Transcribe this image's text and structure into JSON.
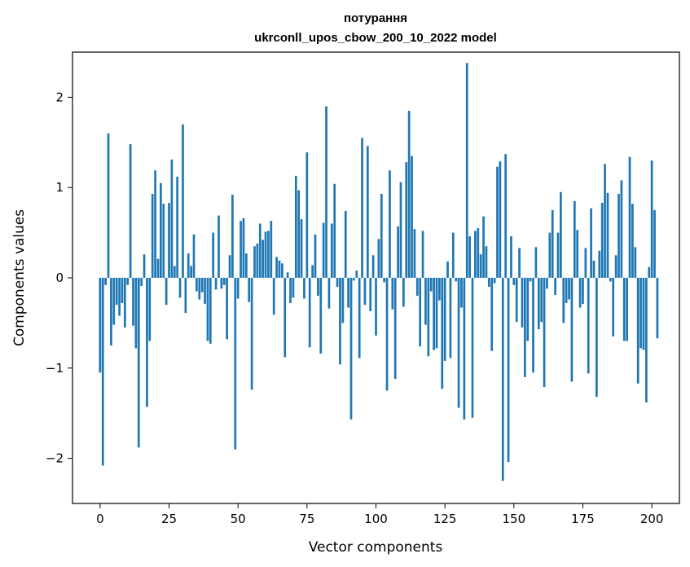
{
  "chart_data": {
    "type": "bar",
    "title_line1": "потурання",
    "title_line2": "ukrconll_upos_cbow_200_10_2022 model",
    "xlabel": "Vector components",
    "ylabel": "Components values",
    "xlim": [
      -10,
      210
    ],
    "ylim": [
      -2.5,
      2.5
    ],
    "xticks": [
      0,
      25,
      50,
      75,
      100,
      125,
      150,
      175,
      200
    ],
    "yticks": [
      -2,
      -1,
      0,
      1,
      2
    ],
    "ytick_labels": [
      "−2",
      "−1",
      "0",
      "1",
      "2"
    ],
    "bar_color": "#1f77b4",
    "grid": false,
    "values": [
      -1.05,
      -2.08,
      -0.08,
      1.6,
      -0.75,
      -0.52,
      -0.3,
      -0.42,
      -0.28,
      -0.55,
      -0.08,
      1.48,
      -0.53,
      -0.78,
      -1.88,
      -0.09,
      0.26,
      -1.43,
      -0.7,
      0.93,
      1.19,
      0.21,
      1.05,
      0.82,
      -0.3,
      0.83,
      1.31,
      0.13,
      1.12,
      -0.22,
      1.7,
      -0.39,
      0.27,
      0.13,
      0.48,
      -0.15,
      -0.24,
      -0.16,
      -0.29,
      -0.7,
      -0.73,
      0.5,
      -0.13,
      0.69,
      -0.12,
      -0.08,
      -0.68,
      0.25,
      0.92,
      -1.9,
      -0.23,
      0.63,
      0.66,
      0.27,
      -0.27,
      -1.24,
      0.35,
      0.38,
      0.6,
      0.42,
      0.51,
      0.52,
      0.63,
      -0.41,
      0.23,
      0.19,
      0.16,
      -0.88,
      0.06,
      -0.28,
      -0.22,
      1.13,
      0.97,
      0.65,
      -0.23,
      1.39,
      -0.77,
      0.14,
      0.48,
      -0.2,
      -0.84,
      0.61,
      1.9,
      -0.34,
      0.6,
      1.04,
      -0.1,
      -0.96,
      -0.5,
      0.74,
      -0.33,
      -1.57,
      -0.03,
      0.08,
      -0.89,
      1.55,
      -0.3,
      1.46,
      -0.37,
      0.25,
      -0.64,
      0.43,
      0.93,
      -0.05,
      -1.25,
      1.19,
      -0.35,
      -1.12,
      0.57,
      1.06,
      -0.32,
      1.28,
      1.85,
      1.35,
      0.54,
      -0.2,
      -0.76,
      0.52,
      -0.52,
      -0.87,
      -0.15,
      -0.8,
      -0.78,
      -0.25,
      -1.23,
      -0.92,
      0.18,
      -0.89,
      0.5,
      -0.04,
      -1.44,
      -0.33,
      -1.57,
      2.38,
      0.46,
      -1.55,
      0.52,
      0.55,
      0.26,
      0.68,
      0.35,
      -0.1,
      -0.81,
      -0.06,
      1.23,
      1.29,
      -2.25,
      1.37,
      -2.04,
      0.46,
      -0.08,
      -0.49,
      0.33,
      -0.55,
      -1.1,
      -0.7,
      -0.04,
      -1.05,
      0.34,
      -0.57,
      -0.49,
      -1.21,
      -0.12,
      0.5,
      0.75,
      -0.19,
      0.5,
      0.95,
      -0.5,
      -0.28,
      -0.24,
      -1.15,
      0.85,
      0.53,
      -0.33,
      -0.29,
      0.33,
      -1.06,
      0.77,
      0.19,
      -1.32,
      0.3,
      0.83,
      1.26,
      0.94,
      -0.04,
      -0.65,
      0.25,
      0.93,
      1.08,
      -0.7,
      -0.7,
      1.34,
      0.82,
      0.34,
      -1.17,
      -0.78,
      -0.8,
      -1.38,
      0.12,
      1.3,
      0.75,
      -0.67
    ]
  }
}
